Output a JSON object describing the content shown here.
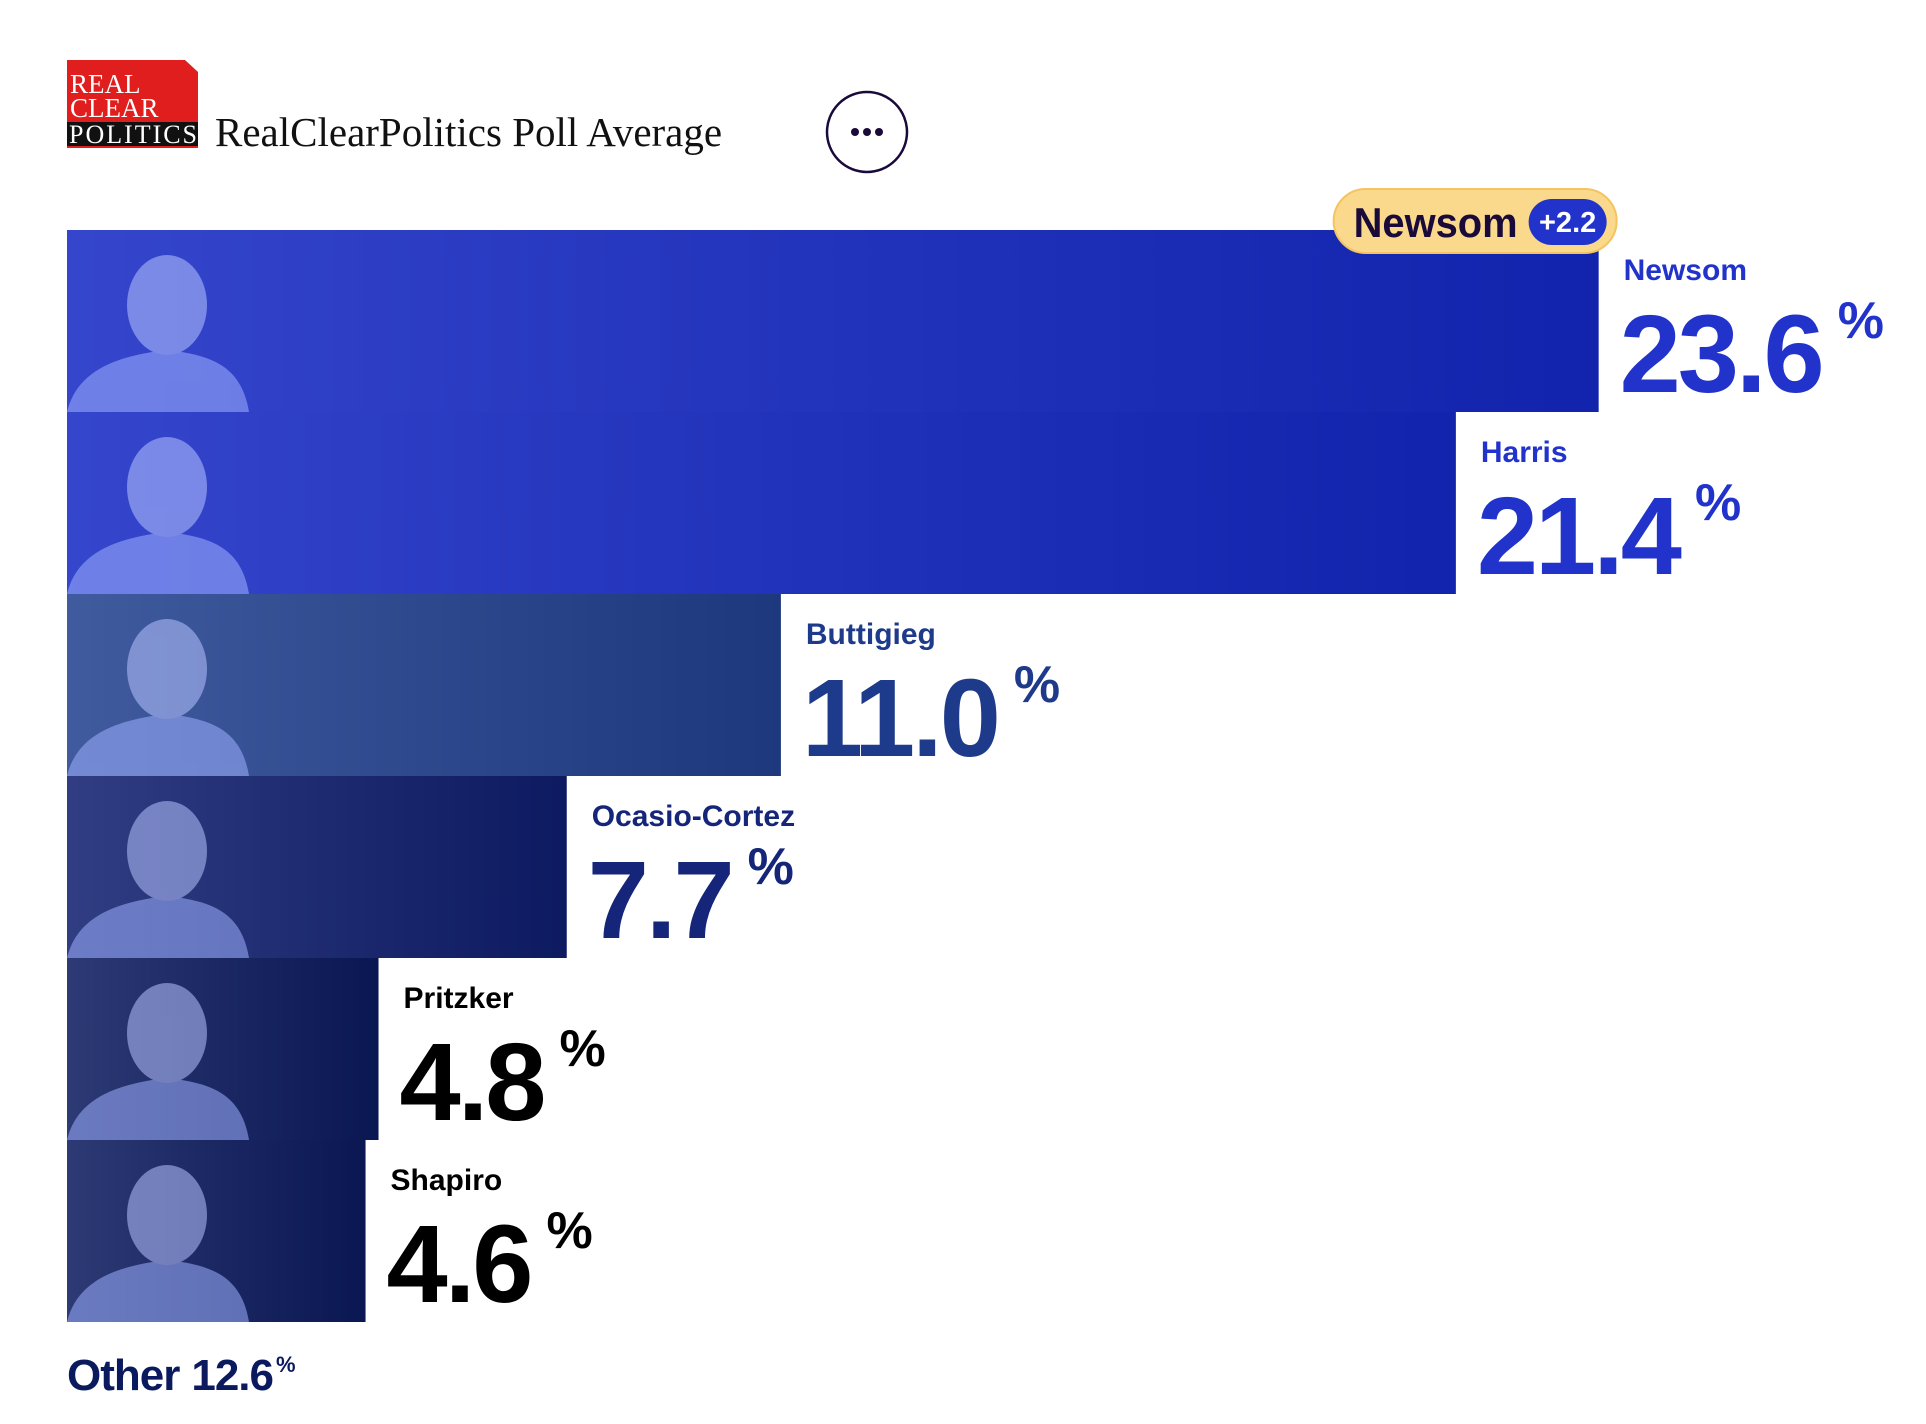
{
  "logo": [
    "REAL",
    "CLEAR",
    "POLITICS"
  ],
  "chart_data": {
    "type": "bar",
    "orientation": "horizontal",
    "title": "RealClearPolitics Poll Average",
    "lead": {
      "candidate": "Newsom",
      "label": "+2.2"
    },
    "categories": [
      "Newsom",
      "Harris",
      "Buttigieg",
      "Ocasio-Cortez",
      "Pritzker",
      "Shapiro"
    ],
    "values": [
      23.6,
      21.4,
      11.0,
      7.7,
      4.8,
      4.6
    ],
    "value_labels": [
      "23.6",
      "21.4",
      "11.0",
      "7.7",
      "4.8",
      "4.6"
    ],
    "unit": "%",
    "colors": [
      "#1428c4",
      "#1428c4",
      "#22408f",
      "#0f1e6e",
      "#0b1a5e",
      "#0b1a5e"
    ],
    "label_colors": [
      "#2233cc",
      "#2233cc",
      "#1e3a8a",
      "#15257a",
      "#000000",
      "#000000"
    ],
    "other": {
      "label": "Other",
      "value": 12.6,
      "color": "#0b1a5e"
    }
  }
}
